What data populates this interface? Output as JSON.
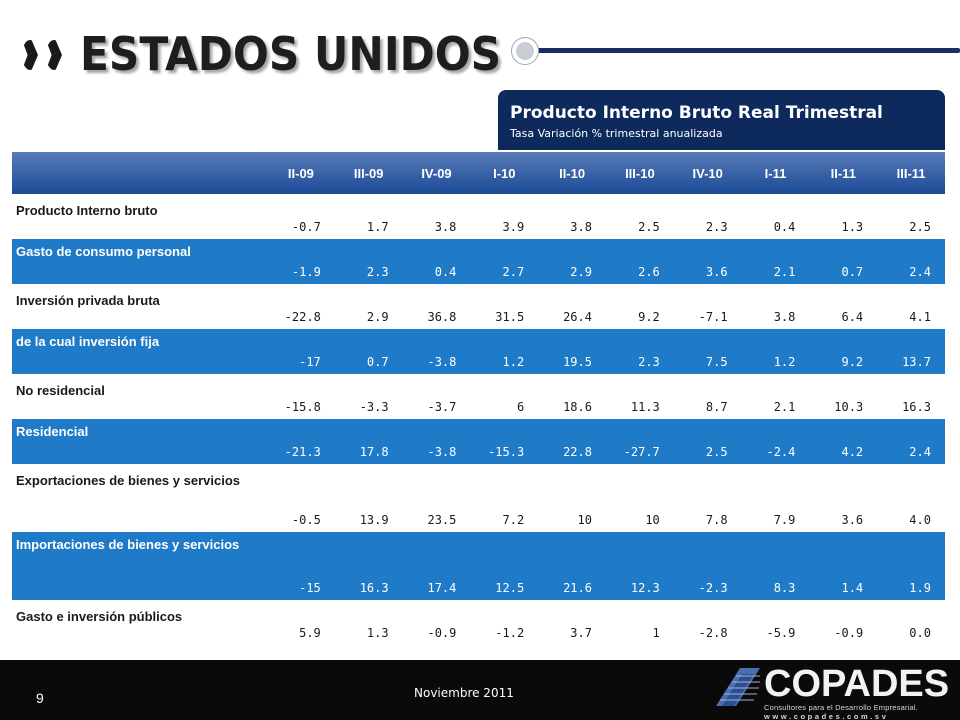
{
  "header": {
    "title": "ESTADOS UNIDOS"
  },
  "panel": {
    "title": "Producto Interno Bruto Real Trimestral",
    "subtitle": "Tasa Variación % trimestral anualizada"
  },
  "table": {
    "columns": [
      "II-09",
      "III-09",
      "IV-09",
      "I-10",
      "II-10",
      "III-10",
      "IV-10",
      "I-11",
      "II-11",
      "III-11"
    ],
    "rows": [
      {
        "label": "Producto Interno bruto",
        "values": [
          "-0.7",
          "1.7",
          "3.8",
          "3.9",
          "3.8",
          "2.5",
          "2.3",
          "0.4",
          "1.3",
          "2.5"
        ]
      },
      {
        "label": "Gasto de consumo personal",
        "values": [
          "-1.9",
          "2.3",
          "0.4",
          "2.7",
          "2.9",
          "2.6",
          "3.6",
          "2.1",
          "0.7",
          "2.4"
        ]
      },
      {
        "label": "Inversión privada bruta",
        "values": [
          "-22.8",
          "2.9",
          "36.8",
          "31.5",
          "26.4",
          "9.2",
          "-7.1",
          "3.8",
          "6.4",
          "4.1"
        ]
      },
      {
        "label": "de la cual inversión fija",
        "values": [
          "-17",
          "0.7",
          "-3.8",
          "1.2",
          "19.5",
          "2.3",
          "7.5",
          "1.2",
          "9.2",
          "13.7"
        ]
      },
      {
        "label": "No residencial",
        "values": [
          "-15.8",
          "-3.3",
          "-3.7",
          "6",
          "18.6",
          "11.3",
          "8.7",
          "2.1",
          "10.3",
          "16.3"
        ]
      },
      {
        "label": "Residencial",
        "values": [
          "-21.3",
          "17.8",
          "-3.8",
          "-15.3",
          "22.8",
          "-27.7",
          "2.5",
          "-2.4",
          "4.2",
          "2.4"
        ]
      },
      {
        "label": "Exportaciones de bienes y servicios",
        "values": [
          "-0.5",
          "13.9",
          "23.5",
          "7.2",
          "10",
          "10",
          "7.8",
          "7.9",
          "3.6",
          "4.0"
        ]
      },
      {
        "label": "Importaciones de bienes y servicios",
        "values": [
          "-15",
          "16.3",
          "17.4",
          "12.5",
          "21.6",
          "12.3",
          "-2.3",
          "8.3",
          "1.4",
          "1.9"
        ]
      },
      {
        "label": "Gasto e inversión públicos",
        "values": [
          "5.9",
          "1.3",
          "-0.9",
          "-1.2",
          "3.7",
          "1",
          "-2.8",
          "-5.9",
          "-0.9",
          "0.0"
        ]
      }
    ]
  },
  "footer": {
    "page_number": "9",
    "date": "Noviembre 2011",
    "logo_name": "COPADES",
    "logo_tagline": "Consultores para el Desarrollo Empresarial.",
    "logo_url": "www.copades.com.sv"
  },
  "colors": {
    "header_navy": "#0e2a5c",
    "row_blue": "#1f7bc8",
    "table_header_blue": "#1a4a96"
  }
}
